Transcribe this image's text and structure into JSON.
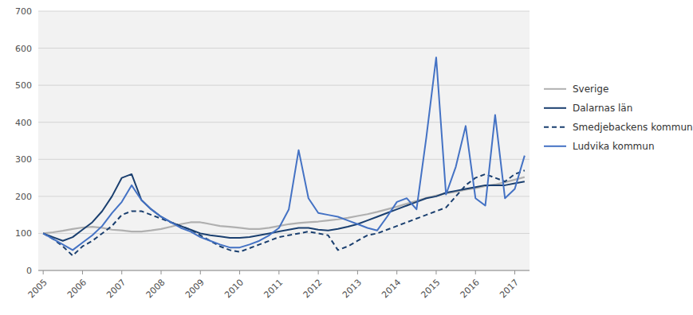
{
  "chart_data": {
    "type": "line",
    "categories": [
      "2005",
      null,
      null,
      null,
      "2006",
      null,
      null,
      null,
      "2007",
      null,
      null,
      null,
      "2008",
      null,
      null,
      null,
      "2009",
      null,
      null,
      null,
      "2010",
      null,
      null,
      null,
      "2011",
      null,
      null,
      null,
      "2012",
      null,
      null,
      null,
      "2013",
      null,
      null,
      null,
      "2014",
      null,
      null,
      null,
      "2015",
      null,
      null,
      null,
      "2016",
      null,
      null,
      null,
      "2017",
      null
    ],
    "series": [
      {
        "name": "Sverige",
        "color": "#b0b0b0",
        "line_style": "solid",
        "values": [
          100,
          103,
          107,
          112,
          116,
          118,
          115,
          110,
          108,
          105,
          105,
          108,
          112,
          118,
          125,
          130,
          130,
          125,
          120,
          118,
          115,
          112,
          112,
          115,
          120,
          125,
          128,
          130,
          132,
          135,
          138,
          142,
          147,
          152,
          158,
          165,
          172,
          180,
          188,
          196,
          202,
          208,
          212,
          218,
          222,
          228,
          232,
          238,
          245,
          252
        ]
      },
      {
        "name": "Dalarnas län",
        "color": "#1a3f6f",
        "line_style": "solid",
        "values": [
          100,
          90,
          80,
          90,
          110,
          130,
          160,
          200,
          250,
          260,
          190,
          165,
          145,
          130,
          120,
          110,
          100,
          95,
          92,
          88,
          88,
          90,
          95,
          100,
          105,
          110,
          115,
          115,
          110,
          108,
          112,
          118,
          125,
          135,
          145,
          155,
          165,
          175,
          185,
          195,
          200,
          210,
          215,
          220,
          225,
          230,
          230,
          230,
          235,
          240
        ]
      },
      {
        "name": "Smedjebackens kommun",
        "color": "#1a3f6f",
        "line_style": "dashed",
        "values": [
          100,
          85,
          65,
          40,
          65,
          80,
          100,
          120,
          150,
          160,
          160,
          150,
          140,
          130,
          120,
          110,
          95,
          80,
          65,
          55,
          50,
          60,
          70,
          80,
          90,
          95,
          100,
          105,
          100,
          95,
          55,
          65,
          80,
          95,
          100,
          110,
          120,
          130,
          140,
          150,
          160,
          170,
          200,
          230,
          250,
          260,
          250,
          240,
          260,
          270
        ]
      },
      {
        "name": "Ludvika kommun",
        "color": "#4472c4",
        "line_style": "solid",
        "values": [
          100,
          85,
          70,
          55,
          75,
          95,
          120,
          155,
          185,
          230,
          190,
          165,
          145,
          130,
          115,
          105,
          90,
          80,
          70,
          62,
          62,
          70,
          80,
          95,
          115,
          165,
          325,
          195,
          155,
          150,
          145,
          135,
          125,
          115,
          108,
          145,
          185,
          195,
          165,
          360,
          575,
          205,
          280,
          390,
          195,
          175,
          420,
          195,
          220,
          310
        ]
      }
    ],
    "ylim": [
      0,
      700
    ],
    "yticks": [
      0,
      100,
      200,
      300,
      400,
      500,
      600,
      700
    ],
    "grid": true,
    "legend": "right"
  }
}
